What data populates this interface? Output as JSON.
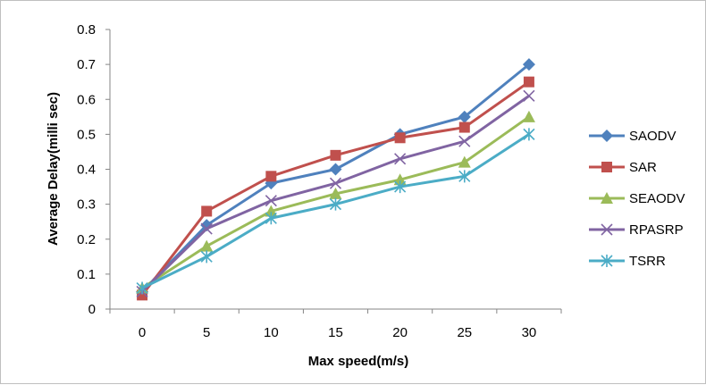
{
  "chart_data": {
    "type": "line",
    "title": "",
    "xlabel": "Max speed(m/s)",
    "ylabel": "Average Delay(milli sec)",
    "categories": [
      "0",
      "5",
      "10",
      "15",
      "20",
      "25",
      "30"
    ],
    "ylim": [
      0,
      0.8
    ],
    "yticks": [
      "0",
      "0.1",
      "0.2",
      "0.3",
      "0.4",
      "0.5",
      "0.6",
      "0.7",
      "0.8"
    ],
    "grid": false,
    "legend_position": "right",
    "series": [
      {
        "name": "SAODV",
        "color": "#4f81bd",
        "marker": "diamond",
        "values": [
          0.05,
          0.24,
          0.36,
          0.4,
          0.5,
          0.55,
          0.7
        ]
      },
      {
        "name": "SAR",
        "color": "#c0504d",
        "marker": "square",
        "values": [
          0.04,
          0.28,
          0.38,
          0.44,
          0.49,
          0.52,
          0.65
        ]
      },
      {
        "name": "SEAODV",
        "color": "#9bbb59",
        "marker": "triangle",
        "values": [
          0.06,
          0.18,
          0.28,
          0.33,
          0.37,
          0.42,
          0.55
        ]
      },
      {
        "name": "RPASRP",
        "color": "#8064a2",
        "marker": "x",
        "values": [
          0.05,
          0.23,
          0.31,
          0.36,
          0.43,
          0.48,
          0.61
        ]
      },
      {
        "name": "TSRR",
        "color": "#4bacc6",
        "marker": "star",
        "values": [
          0.06,
          0.15,
          0.26,
          0.3,
          0.35,
          0.38,
          0.5
        ]
      }
    ]
  }
}
